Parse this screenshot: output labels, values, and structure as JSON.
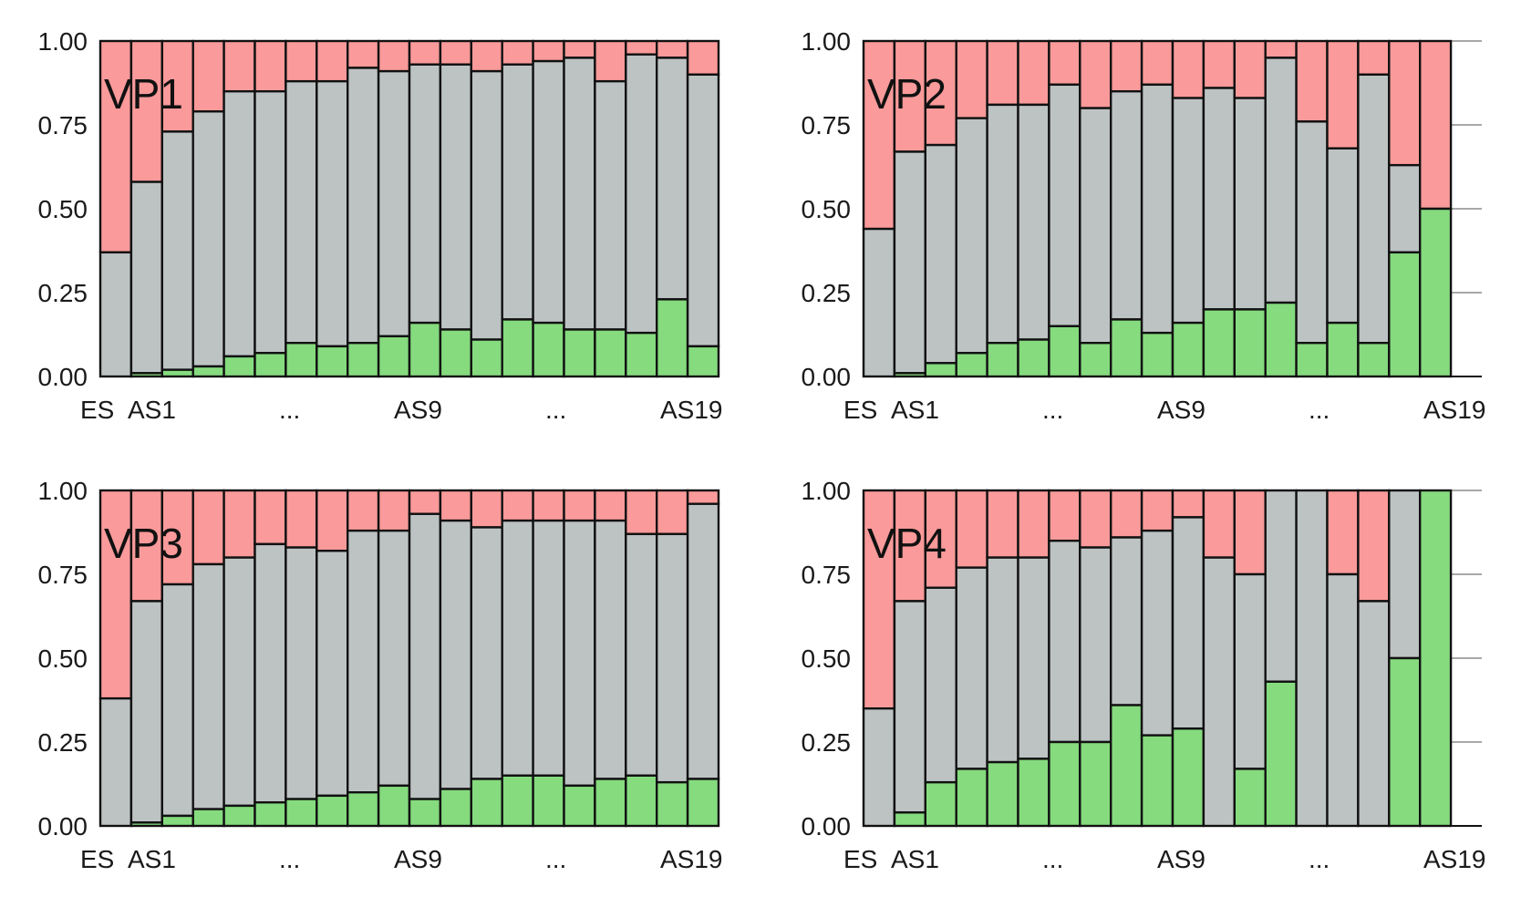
{
  "colors": {
    "bottom": "#85db7e",
    "middle": "#bdc3c3",
    "top": "#fa9a9a",
    "edge": "#111111",
    "grid": "#8c8c8c"
  },
  "chart_data": [
    {
      "type": "bar",
      "stacked": true,
      "label": "VP1",
      "xtick_labels": [
        "ES",
        "AS1",
        "...",
        "AS9",
        "...",
        "AS19"
      ],
      "ytick_labels": [
        "0.00",
        "0.25",
        "0.50",
        "0.75",
        "1.00"
      ],
      "ylim": [
        0,
        1
      ],
      "grid": "horizontal",
      "n_bars": 20,
      "bottom": [
        0.0,
        0.01,
        0.02,
        0.03,
        0.06,
        0.07,
        0.1,
        0.09,
        0.1,
        0.12,
        0.16,
        0.14,
        0.11,
        0.17,
        0.16,
        0.14,
        0.14,
        0.13,
        0.23,
        0.09
      ],
      "cumulative_top_of_middle": [
        0.37,
        0.58,
        0.73,
        0.79,
        0.85,
        0.85,
        0.88,
        0.88,
        0.92,
        0.91,
        0.93,
        0.93,
        0.91,
        0.93,
        0.94,
        0.95,
        0.88,
        0.96,
        0.95,
        0.9
      ]
    },
    {
      "type": "bar",
      "stacked": true,
      "label": "VP2",
      "xtick_labels": [
        "ES",
        "AS1",
        "...",
        "AS9",
        "...",
        "AS19"
      ],
      "ytick_labels": [
        "0.00",
        "0.25",
        "0.50",
        "0.75",
        "1.00"
      ],
      "ylim": [
        0,
        1
      ],
      "grid": "horizontal",
      "n_bars": 19,
      "bottom": [
        0.0,
        0.01,
        0.04,
        0.07,
        0.1,
        0.11,
        0.15,
        0.1,
        0.17,
        0.13,
        0.16,
        0.2,
        0.2,
        0.22,
        0.1,
        0.16,
        0.1,
        0.37,
        0.5
      ],
      "cumulative_top_of_middle": [
        0.44,
        0.67,
        0.69,
        0.77,
        0.81,
        0.81,
        0.87,
        0.8,
        0.85,
        0.87,
        0.83,
        0.86,
        0.83,
        0.95,
        0.76,
        0.68,
        0.9,
        0.63,
        0.5
      ]
    },
    {
      "type": "bar",
      "stacked": true,
      "label": "VP3",
      "xtick_labels": [
        "ES",
        "AS1",
        "...",
        "AS9",
        "...",
        "AS19"
      ],
      "ytick_labels": [
        "0.00",
        "0.25",
        "0.50",
        "0.75",
        "1.00"
      ],
      "ylim": [
        0,
        1
      ],
      "grid": "horizontal",
      "n_bars": 20,
      "bottom": [
        0.0,
        0.01,
        0.03,
        0.05,
        0.06,
        0.07,
        0.08,
        0.09,
        0.1,
        0.12,
        0.08,
        0.11,
        0.14,
        0.15,
        0.15,
        0.12,
        0.14,
        0.15,
        0.13,
        0.14
      ],
      "cumulative_top_of_middle": [
        0.38,
        0.67,
        0.72,
        0.78,
        0.8,
        0.84,
        0.83,
        0.82,
        0.88,
        0.88,
        0.93,
        0.91,
        0.89,
        0.91,
        0.91,
        0.91,
        0.91,
        0.87,
        0.87,
        0.96
      ]
    },
    {
      "type": "bar",
      "stacked": true,
      "label": "VP4",
      "xtick_labels": [
        "ES",
        "AS1",
        "...",
        "AS9",
        "...",
        "AS19"
      ],
      "ytick_labels": [
        "0.00",
        "0.25",
        "0.50",
        "0.75",
        "1.00"
      ],
      "ylim": [
        0,
        1
      ],
      "grid": "horizontal",
      "n_bars": 19,
      "bottom": [
        0.0,
        0.04,
        0.13,
        0.17,
        0.19,
        0.2,
        0.25,
        0.25,
        0.36,
        0.27,
        0.29,
        0.0,
        0.17,
        0.43,
        0.0,
        0.0,
        0.0,
        0.5,
        1.0
      ],
      "cumulative_top_of_middle": [
        0.35,
        0.67,
        0.71,
        0.77,
        0.8,
        0.8,
        0.85,
        0.83,
        0.86,
        0.88,
        0.92,
        0.8,
        0.75,
        1.0,
        1.0,
        0.75,
        0.67,
        1.0,
        1.0
      ]
    }
  ]
}
